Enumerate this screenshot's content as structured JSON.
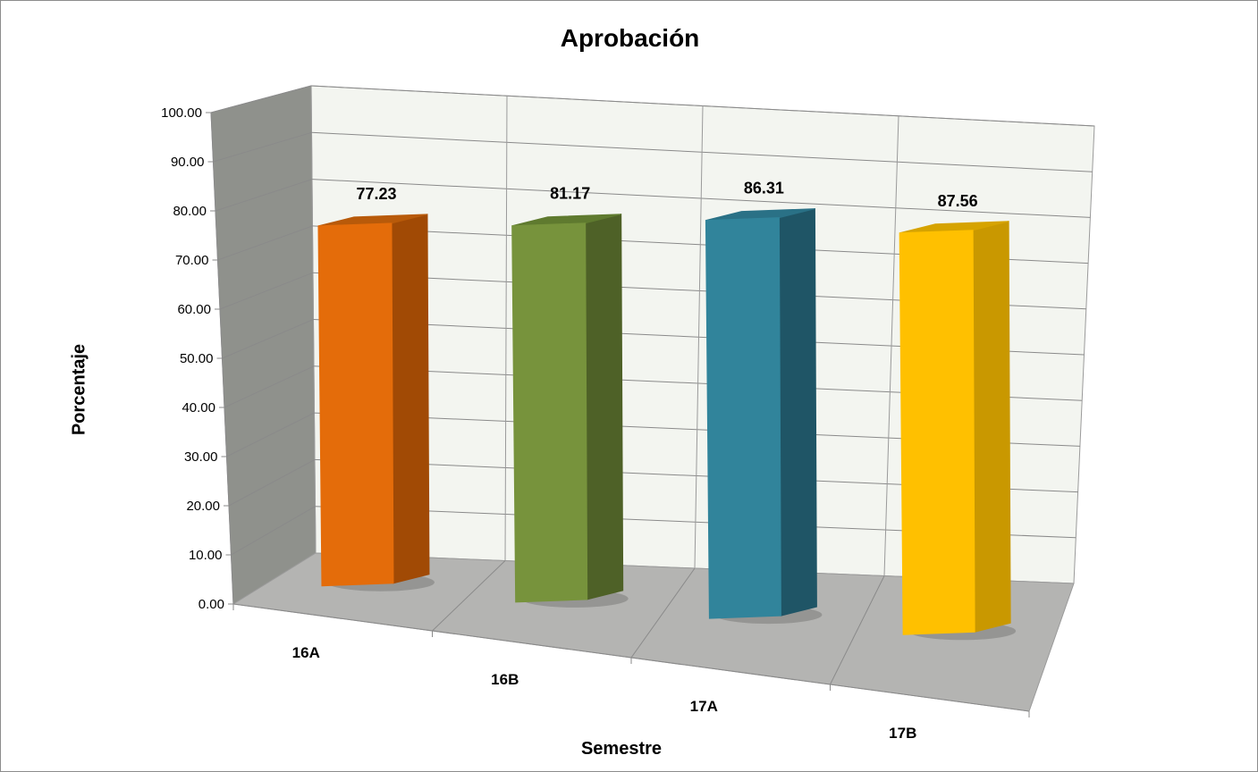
{
  "chart_data": {
    "type": "bar",
    "title": "Aprobación",
    "xlabel": "Semestre",
    "ylabel": "Porcentaje",
    "categories": [
      "16A",
      "16B",
      "17A",
      "17B"
    ],
    "values": [
      77.23,
      81.17,
      86.31,
      87.56
    ],
    "value_labels": [
      "77.23",
      "81.17",
      "86.31",
      "87.56"
    ],
    "ylim": [
      0,
      100
    ],
    "yticks": [
      "0.00",
      "10.00",
      "20.00",
      "30.00",
      "40.00",
      "50.00",
      "60.00",
      "70.00",
      "80.00",
      "90.00",
      "100.00"
    ],
    "grid": true,
    "legend": "none",
    "style": "3d-column",
    "colors": [
      "#e46c0a",
      "#77933c",
      "#31849b",
      "#ffc000"
    ],
    "side_colors": [
      "#a14a05",
      "#4e6127",
      "#1f5566",
      "#c99800"
    ],
    "top_colors": [
      "#b85a0a",
      "#5f7a2f",
      "#2a7186",
      "#d6a300"
    ],
    "wall_color": "#f3f5f0",
    "side_wall_color": "#8f918c",
    "floor_color": "#b4b4b2"
  }
}
